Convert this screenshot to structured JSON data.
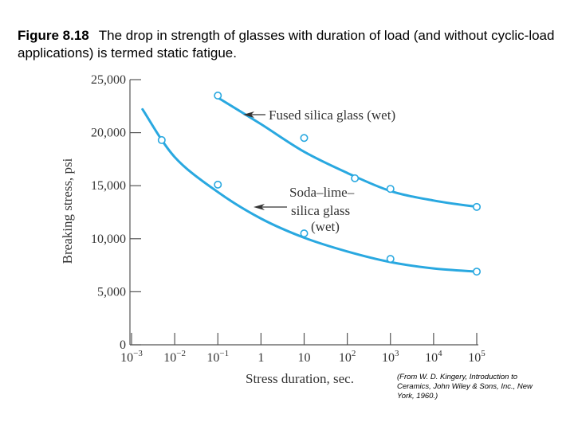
{
  "caption": {
    "label": "Figure 8.18",
    "text": "The drop in strength of glasses with duration of load (and without cyclic-load applications) is termed static fatigue."
  },
  "credit": "(From W. D. Kingery, Introduction to Ceramics, John Wiley & Sons, Inc., New York, 1960.)",
  "colors": {
    "series": "#29a8e0",
    "axis": "#555555",
    "text": "#333333"
  },
  "chart_data": {
    "type": "scatter",
    "xlabel": "Stress duration, sec.",
    "ylabel": "Breaking stress, psi",
    "xscale": "log",
    "xlim": [
      0.001,
      100000
    ],
    "ylim": [
      0,
      25000
    ],
    "x_tick_labels": [
      {
        "value": 0.001,
        "base": "10",
        "exp": "−3"
      },
      {
        "value": 0.01,
        "base": "10",
        "exp": "−2"
      },
      {
        "value": 0.1,
        "base": "10",
        "exp": "−1"
      },
      {
        "value": 1,
        "base": "1",
        "exp": ""
      },
      {
        "value": 10,
        "base": "10",
        "exp": ""
      },
      {
        "value": 100,
        "base": "10",
        "exp": "2"
      },
      {
        "value": 1000,
        "base": "10",
        "exp": "3"
      },
      {
        "value": 10000,
        "base": "10",
        "exp": "4"
      },
      {
        "value": 100000,
        "base": "10",
        "exp": "5"
      }
    ],
    "y_ticks": [
      0,
      5000,
      10000,
      15000,
      20000,
      25000
    ],
    "y_tick_labels": [
      "0",
      "5,000",
      "10,000",
      "15,000",
      "20,000",
      "25,000"
    ],
    "series": [
      {
        "name": "Fused silica glass (wet)",
        "points": [
          {
            "x": 0.1,
            "y": 23500
          },
          {
            "x": 10,
            "y": 19500
          },
          {
            "x": 150,
            "y": 15700
          },
          {
            "x": 1000,
            "y": 14700
          },
          {
            "x": 100000,
            "y": 13000
          }
        ],
        "curve": [
          {
            "x": 0.1,
            "y": 23300
          },
          {
            "x": 1,
            "y": 20800
          },
          {
            "x": 10,
            "y": 18200
          },
          {
            "x": 100,
            "y": 16200
          },
          {
            "x": 1000,
            "y": 14500
          },
          {
            "x": 10000,
            "y": 13600
          },
          {
            "x": 100000,
            "y": 13000
          }
        ]
      },
      {
        "name": "Soda–lime–silica glass (wet)",
        "label_lines": [
          "Soda–lime–",
          "silica glass",
          "(wet)"
        ],
        "points": [
          {
            "x": 0.005,
            "y": 19300
          },
          {
            "x": 0.1,
            "y": 15100
          },
          {
            "x": 10,
            "y": 10500
          },
          {
            "x": 1000,
            "y": 8100
          },
          {
            "x": 100000,
            "y": 6900
          }
        ],
        "curve": [
          {
            "x": 0.0018,
            "y": 22200
          },
          {
            "x": 0.01,
            "y": 17700
          },
          {
            "x": 0.1,
            "y": 14400
          },
          {
            "x": 1,
            "y": 11900
          },
          {
            "x": 10,
            "y": 10100
          },
          {
            "x": 100,
            "y": 8800
          },
          {
            "x": 1000,
            "y": 7800
          },
          {
            "x": 10000,
            "y": 7200
          },
          {
            "x": 100000,
            "y": 6900
          }
        ]
      }
    ]
  }
}
